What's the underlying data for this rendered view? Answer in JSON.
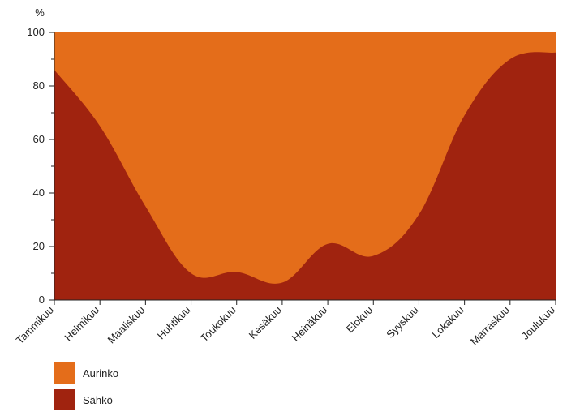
{
  "chart_data": {
    "type": "area",
    "stacked": true,
    "y_unit": "%",
    "ylim": [
      0,
      100
    ],
    "yticks": [
      0,
      20,
      40,
      60,
      80,
      100
    ],
    "categories": [
      "Tammikuu",
      "Helmikuu",
      "Maaliskuu",
      "Huhtikuu",
      "Toukokuu",
      "Kesäkuu",
      "Heinäkuu",
      "Elokuu",
      "Syyskuu",
      "Lokakuu",
      "Marraskuu",
      "Joulukuu"
    ],
    "series": [
      {
        "name": "Sähkö",
        "color": "#a0230f",
        "values": [
          86,
          65,
          35,
          10,
          10.5,
          6.5,
          21,
          16.5,
          32,
          69,
          90,
          92.5
        ]
      },
      {
        "name": "Aurinko",
        "color": "#e46d1a",
        "values": [
          14,
          35,
          65,
          90,
          89.5,
          93.5,
          79,
          83.5,
          68,
          31,
          10,
          7.5
        ]
      }
    ],
    "legend": {
      "placement": "bottom-left",
      "order": [
        "Aurinko",
        "Sähkö"
      ]
    }
  }
}
